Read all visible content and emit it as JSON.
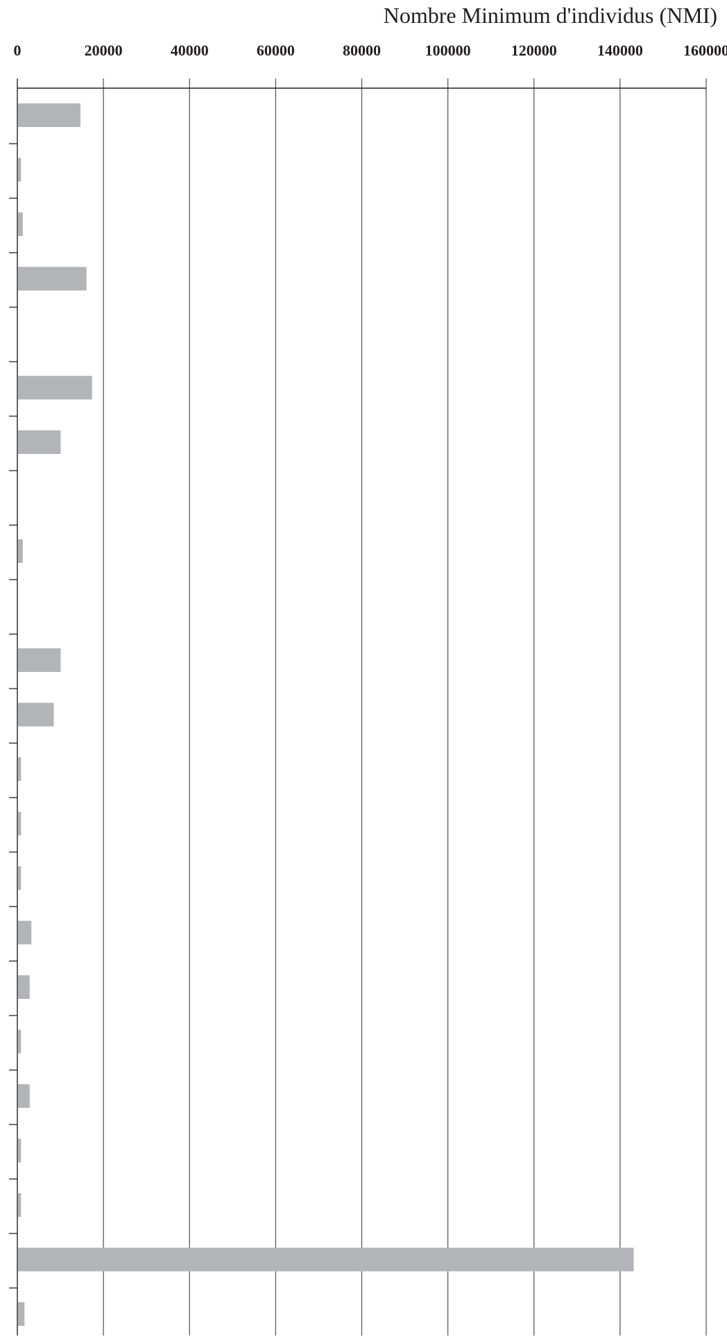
{
  "chart_data": {
    "type": "bar",
    "orientation": "horizontal",
    "xlabel": "Nombre Minimum d'individus (NMI)",
    "xlim": [
      0,
      160000
    ],
    "x_ticks": [
      "0",
      "20000",
      "40000",
      "60000",
      "80000",
      "100000",
      "120000",
      "140000",
      "160000"
    ],
    "x_axis_position": "top",
    "grid": "vertical",
    "bar_color": "#b3b4b8",
    "categories": [
      "",
      "",
      "",
      "",
      "",
      "",
      "",
      "",
      "",
      "",
      "",
      "",
      "",
      "",
      "",
      "",
      "",
      "",
      "",
      "",
      "",
      "",
      "",
      ""
    ],
    "values": [
      14500,
      700,
      1100,
      15900,
      0,
      17200,
      9900,
      0,
      1100,
      0,
      9900,
      8300,
      700,
      700,
      700,
      3100,
      2700,
      700,
      2700,
      700,
      700,
      143000,
      1500,
      0
    ]
  }
}
